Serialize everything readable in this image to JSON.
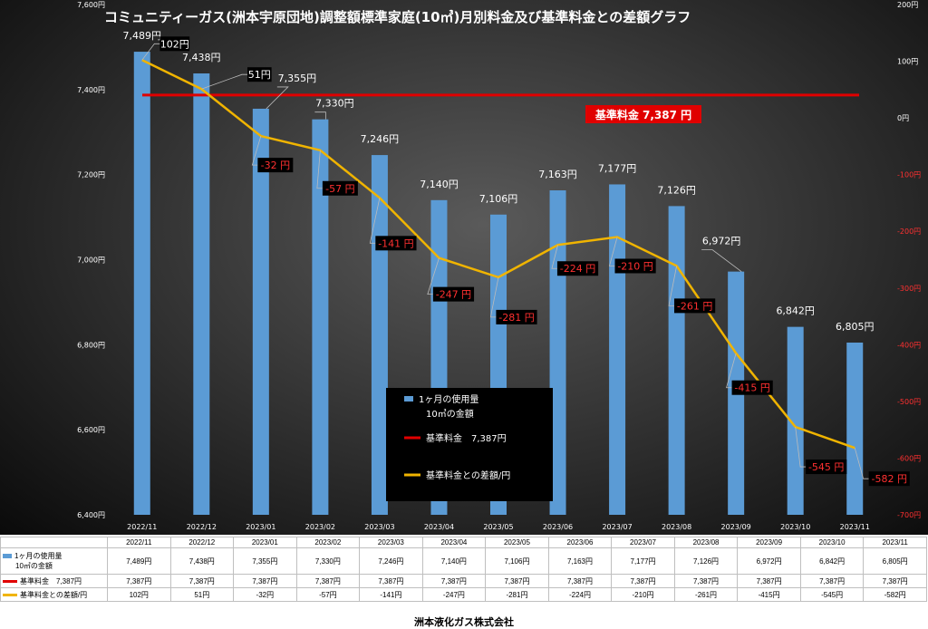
{
  "title": "コミュニティーガス(洲本宇原団地)調整額標準家庭(10㎥)月別料金及び基準料金との差額グラフ",
  "footer": "洲本液化ガス株式会社",
  "base_label": "基準料金 7,387 円",
  "legend": {
    "bar_line1": "1ヶ月の使用量",
    "bar_line2": "10㎥の金額",
    "base": "基準料金　7,387円",
    "diff": "基準料金との差額/円"
  },
  "table": {
    "row1_label_line1": "1ヶ月の使用量",
    "row1_label_line2": "10㎥の金額",
    "row2_label": "基準料金　7,387円",
    "row3_label": "基準料金との差額/円",
    "bar_values": [
      "7,489円",
      "7,438円",
      "7,355円",
      "7,330円",
      "7,246円",
      "7,140円",
      "7,106円",
      "7,163円",
      "7,177円",
      "7,126円",
      "6,972円",
      "6,842円",
      "6,805円"
    ],
    "base_values": [
      "7,387円",
      "7,387円",
      "7,387円",
      "7,387円",
      "7,387円",
      "7,387円",
      "7,387円",
      "7,387円",
      "7,387円",
      "7,387円",
      "7,387円",
      "7,387円",
      "7,387円"
    ],
    "diff_values": [
      "102円",
      "51円",
      "-32円",
      "-57円",
      "-141円",
      "-247円",
      "-281円",
      "-224円",
      "-210円",
      "-261円",
      "-415円",
      "-545円",
      "-582円"
    ]
  },
  "colors": {
    "bar": "#5b9bd5",
    "base_line": "#e00000",
    "diff_line": "#f0b400",
    "label_bg": "#000000",
    "label_text_neg": "#ff3030"
  },
  "chart_data": {
    "type": "bar",
    "categories": [
      "2022/11",
      "2022/12",
      "2023/01",
      "2023/02",
      "2023/03",
      "2023/04",
      "2023/05",
      "2023/06",
      "2023/07",
      "2023/08",
      "2023/09",
      "2023/10",
      "2023/11"
    ],
    "series": [
      {
        "name": "1ヶ月の使用量 10㎥の金額",
        "type": "bar",
        "axis": "left",
        "values": [
          7489,
          7438,
          7355,
          7330,
          7246,
          7140,
          7106,
          7163,
          7177,
          7126,
          6972,
          6842,
          6805
        ],
        "labels": [
          "7,489円",
          "7,438円",
          "7,355円",
          "7,330円",
          "7,246円",
          "7,140円",
          "7,106円",
          "7,163円",
          "7,177円",
          "7,126円",
          "6,972円",
          "6,842円",
          "6,805円"
        ]
      },
      {
        "name": "基準料金 7,387円",
        "type": "line",
        "axis": "left",
        "values": [
          7387,
          7387,
          7387,
          7387,
          7387,
          7387,
          7387,
          7387,
          7387,
          7387,
          7387,
          7387,
          7387
        ]
      },
      {
        "name": "基準料金との差額/円",
        "type": "line",
        "axis": "right",
        "values": [
          102,
          51,
          -32,
          -57,
          -141,
          -247,
          -281,
          -224,
          -210,
          -261,
          -415,
          -545,
          -582
        ],
        "labels": [
          "102円",
          "51円",
          "-32 円",
          "-57 円",
          "-141 円",
          "-247 円",
          "-281 円",
          "-224 円",
          "-210 円",
          "-261 円",
          "-415 円",
          "-545 円",
          "-582 円"
        ]
      }
    ],
    "y_left": {
      "min": 6400,
      "max": 7600,
      "step": 200,
      "tick_labels": [
        "6,400円",
        "6,600円",
        "6,800円",
        "7,000円",
        "7,200円",
        "7,400円",
        "7,600円"
      ]
    },
    "y_right": {
      "min": -700,
      "max": 200,
      "step": 100,
      "tick_labels": [
        "-700円",
        "-600円",
        "-500円",
        "-400円",
        "-300円",
        "-200円",
        "-100円",
        "0円",
        "100円",
        "200円"
      ]
    },
    "grid": false,
    "legend_position": "center"
  }
}
